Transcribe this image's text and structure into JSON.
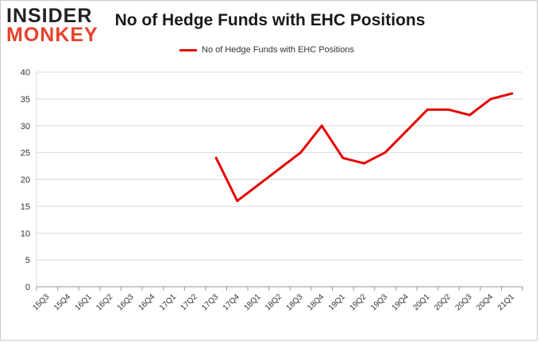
{
  "logo": {
    "line1": "INSIDER",
    "line2": "MONKEY"
  },
  "chart_data": {
    "type": "line",
    "title": "No of Hedge Funds with EHC Positions",
    "categories": [
      "15Q3",
      "15Q4",
      "16Q1",
      "16Q2",
      "16Q3",
      "16Q4",
      "17Q1",
      "17Q2",
      "17Q3",
      "17Q4",
      "18Q1",
      "18Q2",
      "18Q3",
      "18Q4",
      "19Q1",
      "19Q2",
      "19Q3",
      "19Q4",
      "20Q1",
      "20Q2",
      "20Q3",
      "20Q4",
      "21Q1"
    ],
    "series": [
      {
        "name": "No of Hedge Funds with EHC Positions",
        "color": "#e60000",
        "values": [
          null,
          null,
          null,
          null,
          null,
          null,
          null,
          null,
          24,
          16,
          19,
          22,
          25,
          30,
          24,
          23,
          25,
          29,
          33,
          33,
          32,
          35,
          36
        ]
      }
    ],
    "ylim": [
      0,
      40
    ],
    "yticks": [
      0,
      5,
      10,
      15,
      20,
      25,
      30,
      35,
      40
    ],
    "grid": true,
    "legend_position": "top"
  }
}
